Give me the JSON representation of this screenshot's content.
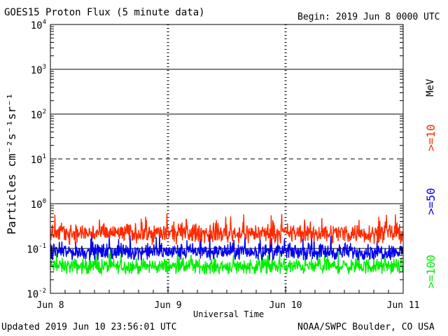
{
  "header": {
    "title": "GOES15 Proton Flux (5 minute data)",
    "begin": "Begin: 2019 Jun 8 0000 UTC"
  },
  "footer": {
    "updated": "Updated 2019 Jun 10 23:56:01 UTC",
    "source": "NOAA/SWPC Boulder, CO USA"
  },
  "chart_data": {
    "type": "line",
    "ylabel": "Particles cm⁻²s⁻¹sr⁻¹",
    "xlabel": "Universal Time",
    "units_label": "MeV",
    "yscale": "log",
    "ylim": [
      0.01,
      10000
    ],
    "xlim": [
      "2019-06-08",
      "2019-06-11"
    ],
    "x_ticks": [
      "Jun 8",
      "Jun 9",
      "Jun 10",
      "Jun 11"
    ],
    "y_tick_bases": [
      "10",
      "10",
      "10",
      "10",
      "10",
      "10",
      "10"
    ],
    "y_tick_exps": [
      "-2",
      "-1",
      "0",
      "1",
      "2",
      "3",
      "4"
    ],
    "thresholds": [
      {
        "value": 10,
        "style": "dashed"
      },
      {
        "value": 100,
        "style": "solid"
      },
      {
        "value": 1000,
        "style": "solid"
      },
      {
        "value": 1,
        "style": "solid"
      },
      {
        "value": 0.1,
        "style": "solid"
      }
    ],
    "series": [
      {
        "name": ">=10",
        "color": "#ff2a00",
        "typical": 0.22,
        "min": 0.12,
        "max": 0.62
      },
      {
        "name": ">=50",
        "color": "#0000ee",
        "typical": 0.085,
        "min": 0.055,
        "max": 0.22
      },
      {
        "name": ">=100",
        "color": "#00ee00",
        "typical": 0.04,
        "min": 0.027,
        "max": 0.1
      }
    ]
  }
}
